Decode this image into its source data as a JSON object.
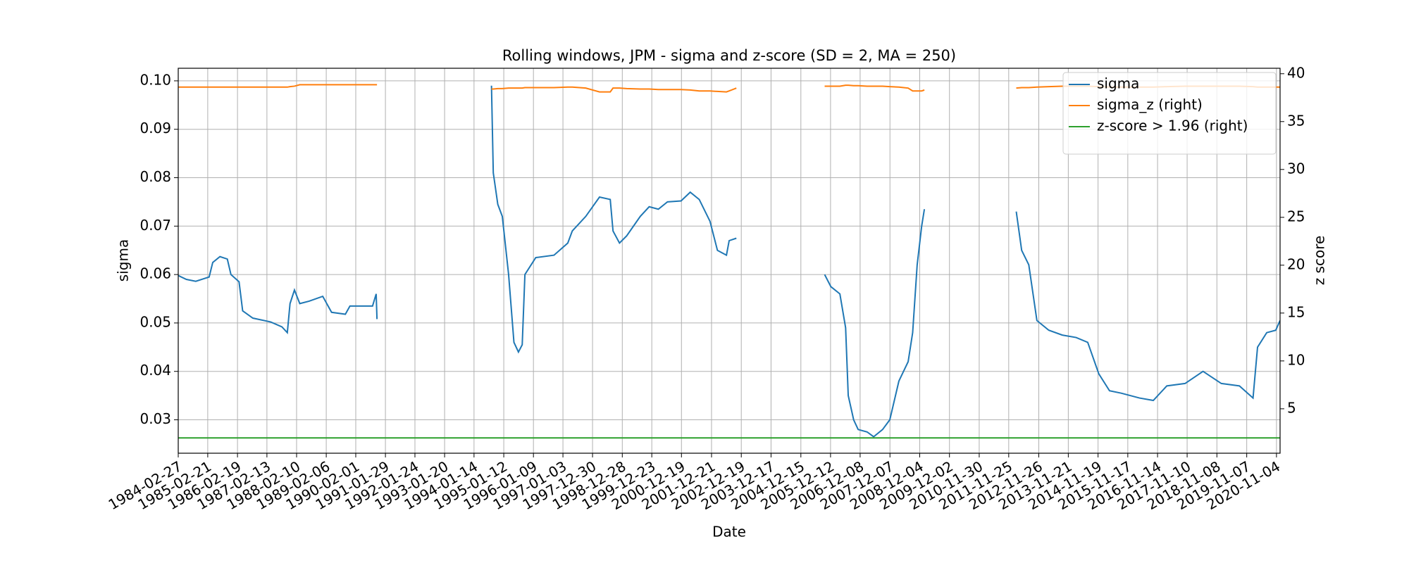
{
  "chart_data": {
    "type": "line",
    "title": "Rolling windows, JPM - sigma and z-score (SD = 2, MA = 250)",
    "xlabel": "Date",
    "ylabel": "sigma",
    "y2label": "z score",
    "grid": true,
    "legend": "upper right",
    "xlim": [
      "1984-02-27",
      "2020-12-18"
    ],
    "xticks": [
      "1984-02-27",
      "1985-02-21",
      "1986-02-19",
      "1987-02-13",
      "1988-02-10",
      "1989-02-06",
      "1990-02-01",
      "1991-01-29",
      "1992-01-24",
      "1993-01-20",
      "1994-01-14",
      "1995-01-12",
      "1996-01-09",
      "1997-01-03",
      "1997-12-30",
      "1998-12-28",
      "1999-12-23",
      "2000-12-19",
      "2001-12-21",
      "2002-12-19",
      "2003-12-17",
      "2004-12-15",
      "2005-12-12",
      "2006-12-08",
      "2007-12-07",
      "2008-12-04",
      "2009-12-02",
      "2010-11-30",
      "2011-11-25",
      "2012-11-26",
      "2013-11-21",
      "2014-11-19",
      "2015-11-17",
      "2016-11-14",
      "2017-11-10",
      "2018-11-08",
      "2019-11-07",
      "2020-11-04"
    ],
    "ylim": [
      0.0231,
      0.1026
    ],
    "yticks": [
      0.03,
      0.04,
      0.05,
      0.06,
      0.07,
      0.08,
      0.09,
      {
        "value": 0.1,
        "label": "0.10"
      }
    ],
    "y2lim": [
      0.36,
      40.57
    ],
    "y2ticks": [
      5,
      10,
      15,
      20,
      25,
      30,
      35,
      40
    ],
    "x": [
      "1984-02-27",
      "1984-06-05",
      "1984-09-28",
      "1985-03-10",
      "1985-04-23",
      "1985-07-20",
      "1985-10-18",
      "1985-12-01",
      "1986-03-10",
      "1986-04-23",
      "1986-08-25",
      "1987-04-01",
      "1987-08-15",
      "1987-10-20",
      "1987-11-22",
      "1988-01-15",
      "1988-03-20",
      "1988-07-12",
      "1988-12-25",
      "1989-04-12",
      "1989-09-27",
      "1989-11-22",
      "1990-08-25",
      "1990-10-08",
      "1990-10-18",
      "1992-06-01",
      "1994-08-15",
      "1994-09-06",
      "1994-10-31",
      "1994-12-25",
      "1995-03-12",
      "1995-05-16",
      "1995-07-10",
      "1995-08-25",
      "1995-09-27",
      "1996-02-06",
      "1996-09-16",
      "1997-03-03",
      "1997-04-27",
      "1997-10-08",
      "1998-03-25",
      "1998-08-03",
      "1998-09-06",
      "1998-11-24",
      "1999-02-20",
      "1999-08-04",
      "1999-11-21",
      "2000-03-12",
      "2000-07-01",
      "2000-12-14",
      "2001-04-05",
      "2001-07-24",
      "2001-12-02",
      "2002-03-03",
      "2002-06-21",
      "2002-07-24",
      "2002-10-20",
      "2004-01-01",
      "2005-10-01",
      "2005-12-16",
      "2006-04-05",
      "2006-06-14",
      "2006-07-16",
      "2006-09-20",
      "2006-11-14",
      "2007-03-03",
      "2007-05-22",
      "2007-09-08",
      "2007-12-05",
      "2008-03-25",
      "2008-07-16",
      "2008-09-09",
      "2008-11-03",
      "2008-12-28",
      "2009-01-30",
      "2010-06-01",
      "2012-02-25",
      "2012-05-01",
      "2012-07-27",
      "2012-11-03",
      "2013-03-28",
      "2013-09-08",
      "2014-02-24",
      "2014-07-16",
      "2014-11-28",
      "2015-04-08",
      "2015-08-29",
      "2016-04-08",
      "2016-09-23",
      "2017-03-07",
      "2017-10-16",
      "2018-05-23",
      "2019-01-01",
      "2019-08-10",
      "2020-01-23",
      "2020-03-18",
      "2020-07-08",
      "2020-10-26",
      "2020-12-18"
    ],
    "series": [
      {
        "name": "sigma",
        "color": "#1f77b4",
        "values": [
          0.0598,
          0.059,
          0.0586,
          0.0595,
          0.0625,
          0.0637,
          0.0632,
          0.06,
          0.0585,
          0.0525,
          0.051,
          0.0502,
          0.0492,
          0.048,
          0.054,
          0.0568,
          0.054,
          0.0545,
          0.0555,
          0.0522,
          0.0518,
          0.0535,
          0.0535,
          0.056,
          0.0508,
          null,
          0.099,
          0.081,
          0.0745,
          0.072,
          0.06,
          0.046,
          0.044,
          0.0455,
          0.06,
          0.0635,
          0.064,
          0.0665,
          0.069,
          0.072,
          0.076,
          0.0755,
          0.069,
          0.0665,
          0.068,
          0.072,
          0.074,
          0.0735,
          0.075,
          0.0752,
          0.077,
          0.0755,
          0.071,
          0.065,
          0.064,
          0.067,
          0.0675,
          null,
          0.06,
          0.0575,
          0.056,
          0.049,
          0.035,
          0.03,
          0.028,
          0.0275,
          0.0265,
          0.028,
          0.03,
          0.038,
          0.042,
          0.048,
          0.062,
          0.07,
          0.0735,
          null,
          0.073,
          0.065,
          0.062,
          0.0505,
          0.0485,
          0.0475,
          0.047,
          0.046,
          0.0395,
          0.036,
          0.0355,
          0.0345,
          0.034,
          0.037,
          0.0375,
          0.04,
          0.0375,
          0.037,
          0.0345,
          0.045,
          0.048,
          0.0485,
          0.0505
        ]
      },
      {
        "name": "sigma_z (right)",
        "color": "#ff7f0e",
        "axis": "y2",
        "values": [
          38.6,
          38.6,
          38.6,
          38.6,
          38.6,
          38.6,
          38.6,
          38.6,
          38.6,
          38.6,
          38.6,
          38.6,
          38.6,
          38.6,
          38.65,
          38.7,
          38.85,
          38.85,
          38.85,
          38.85,
          38.85,
          38.85,
          38.85,
          38.85,
          38.85,
          null,
          38.4,
          38.4,
          38.45,
          38.45,
          38.5,
          38.5,
          38.5,
          38.5,
          38.55,
          38.55,
          38.55,
          38.6,
          38.6,
          38.5,
          38.1,
          38.1,
          38.5,
          38.5,
          38.45,
          38.4,
          38.4,
          38.35,
          38.35,
          38.35,
          38.3,
          38.2,
          38.2,
          38.15,
          38.1,
          38.2,
          38.5,
          null,
          38.7,
          38.7,
          38.7,
          38.8,
          38.8,
          38.75,
          38.75,
          38.7,
          38.7,
          38.7,
          38.65,
          38.6,
          38.5,
          38.2,
          38.2,
          38.2,
          38.3,
          null,
          38.5,
          38.55,
          38.55,
          38.6,
          38.65,
          38.7,
          38.7,
          38.7,
          38.65,
          38.6,
          38.6,
          38.6,
          38.6,
          38.65,
          38.7,
          38.7,
          38.7,
          38.7,
          38.65,
          38.6,
          38.6,
          38.6,
          38.6
        ]
      },
      {
        "name": "z-score > 1.96 (right)",
        "color": "#2ca02c",
        "axis": "y2",
        "values": [
          1.96,
          1.96,
          1.96,
          1.96,
          1.96,
          1.96,
          1.96,
          1.96,
          1.96,
          1.96,
          1.96,
          1.96,
          1.96,
          1.96,
          1.96,
          1.96,
          1.96,
          1.96,
          1.96,
          1.96,
          1.96,
          1.96,
          1.96,
          1.96,
          1.96,
          1.96,
          1.96,
          1.96,
          1.96,
          1.96,
          1.96,
          1.96,
          1.96,
          1.96,
          1.96,
          1.96,
          1.96,
          1.96,
          1.96,
          1.96,
          1.96,
          1.96,
          1.96,
          1.96,
          1.96,
          1.96,
          1.96,
          1.96,
          1.96,
          1.96,
          1.96,
          1.96,
          1.96,
          1.96,
          1.96,
          1.96,
          1.96,
          1.96,
          1.96,
          1.96,
          1.96,
          1.96,
          1.96,
          1.96,
          1.96,
          1.96,
          1.96,
          1.96,
          1.96,
          1.96,
          1.96,
          1.96,
          1.96,
          1.96,
          1.96,
          1.96,
          1.96,
          1.96,
          1.96,
          1.96,
          1.96,
          1.96,
          1.96,
          1.96,
          1.96,
          1.96,
          1.96,
          1.96,
          1.96,
          1.96,
          1.96,
          1.96,
          1.96,
          1.96,
          1.96,
          1.96,
          1.96,
          1.96,
          1.96
        ]
      }
    ]
  }
}
